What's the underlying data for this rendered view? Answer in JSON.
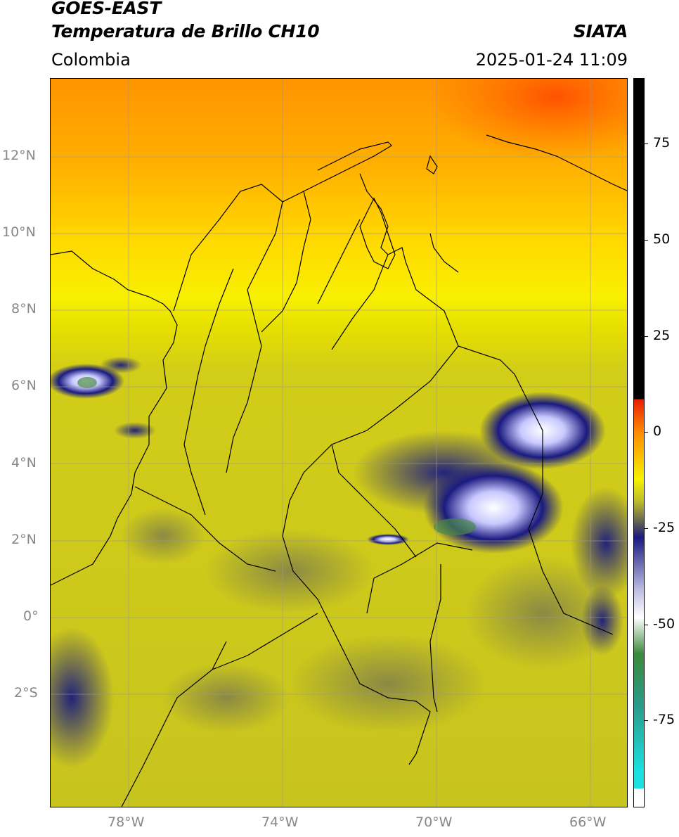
{
  "header": {
    "title_line1": "GOES-EAST",
    "title_line2": "Temperatura de Brillo CH10",
    "region": "Colombia",
    "source": "SIATA",
    "timestamp": "2025-01-24 11:09"
  },
  "map": {
    "lat_labels": [
      "12°N",
      "10°N",
      "8°N",
      "6°N",
      "4°N",
      "2°N",
      "0°",
      "2°S"
    ],
    "lon_labels": [
      "78°W",
      "74°W",
      "70°W",
      "66°W"
    ],
    "grid": true
  },
  "colorbar": {
    "tick_labels": [
      "75",
      "50",
      "25",
      "0",
      "-25",
      "-50",
      "-75"
    ],
    "colors": {
      "black": "#000000",
      "red": "#e81b00",
      "orange": "#ff8a00",
      "yellow": "#f6f200",
      "olive": "#bdbd2a",
      "gray": "#5e5e55",
      "navy": "#1a1a80",
      "white": "#ffffff",
      "green": "#3a8a3a",
      "cyan": "#1ae0e0"
    }
  }
}
